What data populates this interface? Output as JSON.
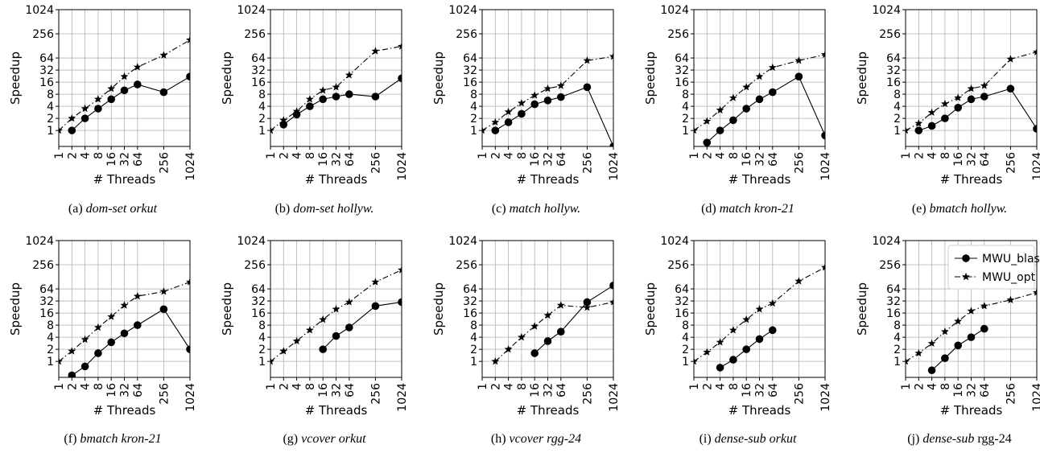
{
  "shared_axes": {
    "xlabel": "# Threads",
    "ylabel": "Speedup",
    "x_ticks": [
      1,
      2,
      4,
      8,
      16,
      32,
      64,
      256,
      1024
    ],
    "y_ticks": [
      1,
      2,
      4,
      8,
      16,
      32,
      64,
      256,
      1024
    ],
    "scale": "log2",
    "xlim": [
      1,
      1024
    ],
    "ylim": [
      0.4,
      1024
    ],
    "grid": true
  },
  "legend": {
    "placement": "top-right of panel (j)",
    "entries": [
      "MWU_blas",
      "MWU_opt"
    ]
  },
  "chart_data": [
    {
      "type": "line",
      "label": "(a)",
      "caption": "dom-set orkut",
      "caption_extra": "",
      "series": [
        {
          "name": "MWU_blas",
          "x": [
            2,
            4,
            8,
            16,
            32,
            64,
            256,
            1024
          ],
          "y": [
            1,
            2,
            3.5,
            6,
            10,
            14,
            9,
            22
          ]
        },
        {
          "name": "MWU_opt",
          "x": [
            1,
            2,
            4,
            8,
            16,
            32,
            64,
            256,
            1024
          ],
          "y": [
            1,
            2,
            3.5,
            6,
            11,
            22,
            38,
            75,
            180
          ]
        }
      ]
    },
    {
      "type": "line",
      "label": "(b)",
      "caption": "dom-set hollyw.",
      "caption_extra": "",
      "series": [
        {
          "name": "MWU_blas",
          "x": [
            2,
            4,
            8,
            16,
            32,
            64,
            256,
            1024
          ],
          "y": [
            1.4,
            2.5,
            4,
            6,
            7,
            8,
            7,
            20
          ]
        },
        {
          "name": "MWU_opt",
          "x": [
            1,
            2,
            4,
            8,
            16,
            32,
            64,
            256,
            1024
          ],
          "y": [
            1,
            1.8,
            3,
            6,
            10,
            12,
            24,
            95,
            125
          ]
        }
      ]
    },
    {
      "type": "line",
      "label": "(c)",
      "caption": "match hollyw.",
      "caption_extra": "",
      "series": [
        {
          "name": "MWU_blas",
          "x": [
            2,
            4,
            8,
            16,
            32,
            64,
            256,
            1024
          ],
          "y": [
            1,
            1.6,
            2.6,
            4.5,
            5.6,
            6.8,
            12,
            0.4
          ]
        },
        {
          "name": "MWU_opt",
          "x": [
            1,
            2,
            4,
            8,
            16,
            32,
            64,
            256,
            1024
          ],
          "y": [
            1,
            1.6,
            2.9,
            4.8,
            7.5,
            11,
            13,
            55,
            70
          ]
        }
      ]
    },
    {
      "type": "line",
      "label": "(d)",
      "caption": "match kron-21",
      "caption_extra": "",
      "series": [
        {
          "name": "MWU_blas",
          "x": [
            2,
            4,
            8,
            16,
            32,
            64,
            256,
            1024
          ],
          "y": [
            0.5,
            1,
            1.8,
            3.5,
            6,
            9,
            22,
            0.75
          ]
        },
        {
          "name": "MWU_opt",
          "x": [
            1,
            2,
            4,
            8,
            16,
            32,
            64,
            256,
            1024
          ],
          "y": [
            1,
            1.7,
            3.2,
            6.5,
            12,
            22,
            37,
            55,
            78
          ]
        }
      ]
    },
    {
      "type": "line",
      "label": "(e)",
      "caption": "bmatch hollyw.",
      "caption_extra": "",
      "series": [
        {
          "name": "MWU_blas",
          "x": [
            2,
            4,
            8,
            16,
            32,
            64,
            256,
            1024
          ],
          "y": [
            1,
            1.3,
            2,
            3.7,
            6,
            7,
            11,
            1.1
          ]
        },
        {
          "name": "MWU_opt",
          "x": [
            1,
            2,
            4,
            8,
            16,
            32,
            64,
            256,
            1024
          ],
          "y": [
            1,
            1.5,
            2.8,
            4.6,
            6.5,
            11,
            13,
            60,
            90
          ]
        }
      ]
    },
    {
      "type": "line",
      "label": "(f)",
      "caption": "bmatch kron-21",
      "caption_extra": "",
      "series": [
        {
          "name": "MWU_blas",
          "x": [
            2,
            4,
            8,
            16,
            32,
            64,
            256,
            1024
          ],
          "y": [
            0.45,
            0.75,
            1.6,
            3,
            5,
            8,
            20,
            2
          ]
        },
        {
          "name": "MWU_opt",
          "x": [
            1,
            2,
            4,
            8,
            16,
            32,
            64,
            256,
            1024
          ],
          "y": [
            1,
            1.8,
            3.5,
            7,
            13,
            25,
            42,
            55,
            95
          ]
        }
      ]
    },
    {
      "type": "line",
      "label": "(g)",
      "caption": "vcover orkut",
      "caption_extra": "",
      "series": [
        {
          "name": "MWU_blas",
          "x": [
            16,
            32,
            64,
            256,
            1024
          ],
          "y": [
            2,
            4.3,
            7,
            24,
            30
          ]
        },
        {
          "name": "MWU_opt",
          "x": [
            1,
            2,
            4,
            8,
            16,
            32,
            64,
            256,
            1024
          ],
          "y": [
            1,
            1.8,
            3.2,
            6,
            11,
            20,
            30,
            95,
            190
          ]
        }
      ]
    },
    {
      "type": "line",
      "label": "(h)",
      "caption": "vcover rgg-24",
      "caption_extra": "",
      "series": [
        {
          "name": "MWU_blas",
          "x": [
            16,
            32,
            64,
            256,
            1024
          ],
          "y": [
            1.6,
            3.2,
            5.5,
            30,
            78
          ]
        },
        {
          "name": "MWU_opt",
          "x": [
            2,
            4,
            8,
            16,
            32,
            64,
            256,
            1024
          ],
          "y": [
            1,
            2,
            4,
            7.5,
            14,
            25,
            22,
            30
          ]
        }
      ]
    },
    {
      "type": "line",
      "label": "(i)",
      "caption": "dense-sub orkut",
      "caption_extra": "",
      "series": [
        {
          "name": "MWU_blas",
          "x": [
            4,
            8,
            16,
            32,
            64
          ],
          "y": [
            0.7,
            1.1,
            2,
            3.6,
            6
          ]
        },
        {
          "name": "MWU_opt",
          "x": [
            1,
            2,
            4,
            8,
            16,
            32,
            64,
            256,
            1024
          ],
          "y": [
            1,
            1.7,
            3,
            6,
            11,
            20,
            28,
            100,
            220
          ]
        }
      ]
    },
    {
      "type": "line",
      "label": "(j)",
      "caption": "dense-sub",
      "caption_extra": " rgg-24",
      "series": [
        {
          "name": "MWU_blas",
          "x": [
            4,
            8,
            16,
            32,
            64
          ],
          "y": [
            0.6,
            1.2,
            2.5,
            4,
            6.5
          ]
        },
        {
          "name": "MWU_opt",
          "x": [
            1,
            2,
            4,
            8,
            16,
            32,
            64,
            256,
            1024
          ],
          "y": [
            1,
            1.6,
            2.8,
            5.5,
            10,
            18,
            24,
            34,
            52
          ]
        }
      ]
    }
  ]
}
